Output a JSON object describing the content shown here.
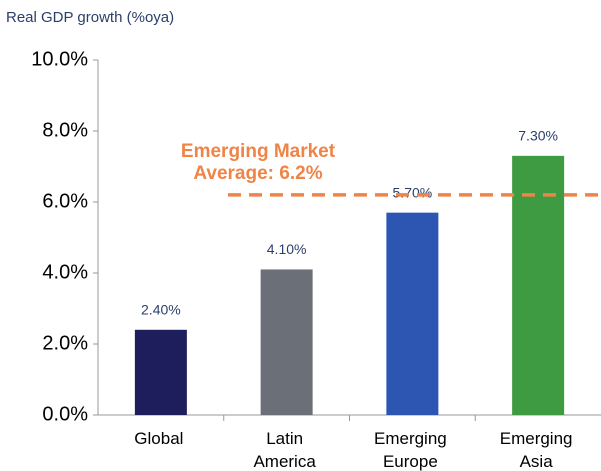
{
  "chart_data": {
    "type": "bar",
    "title": "Real GDP growth (%oya)",
    "categories": [
      "Global",
      "Latin America",
      "Emerging Europe",
      "Emerging Asia"
    ],
    "values": [
      2.4,
      4.1,
      5.7,
      7.3
    ],
    "value_labels": [
      "2.40%",
      "4.10%",
      "5.70%",
      "7.30%"
    ],
    "colors": [
      "#1e1e5c",
      "#6a6f78",
      "#2c56b2",
      "#3f9b41"
    ],
    "ylim": [
      0,
      10
    ],
    "yticks": [
      {
        "value": 0,
        "label": "0.0%"
      },
      {
        "value": 2,
        "label": "2.0%"
      },
      {
        "value": 4,
        "label": "4.0%"
      },
      {
        "value": 6,
        "label": "6.0%"
      },
      {
        "value": 8,
        "label": "8.0%"
      },
      {
        "value": 10,
        "label": "10.0%"
      }
    ],
    "reference_line": {
      "value": 6.2,
      "label": "Emerging Market Average: 6.2%",
      "color": "#ef8448"
    },
    "grid": false
  }
}
